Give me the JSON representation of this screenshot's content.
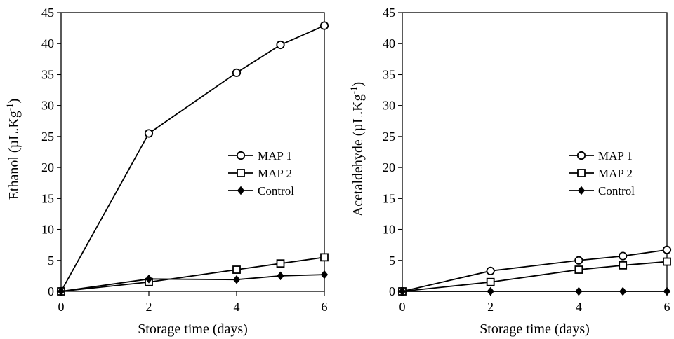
{
  "chart_data": [
    {
      "type": "line",
      "xlabel": "Storage time (days)",
      "ylabel": {
        "main": "Ethanol (µL.Kg",
        "sup": "-1",
        "tail": ")"
      },
      "xlim": [
        0,
        6
      ],
      "ylim": [
        0,
        45
      ],
      "xticks": [
        0,
        2,
        4,
        6
      ],
      "yticks": [
        0,
        5,
        10,
        15,
        20,
        25,
        30,
        35,
        40,
        45
      ],
      "grid": false,
      "legend_position": "right-middle",
      "series": [
        {
          "name": "MAP 1",
          "marker": "circle",
          "x": [
            0,
            2,
            4,
            5,
            6
          ],
          "y": [
            0,
            25.5,
            35.3,
            39.8,
            42.9
          ]
        },
        {
          "name": "MAP 2",
          "marker": "square",
          "x": [
            0,
            2,
            4,
            5,
            6
          ],
          "y": [
            0,
            1.5,
            3.5,
            4.5,
            5.5
          ]
        },
        {
          "name": "Control",
          "marker": "diamond",
          "x": [
            0,
            2,
            4,
            5,
            6
          ],
          "y": [
            0,
            2.0,
            1.9,
            2.5,
            2.7
          ]
        }
      ]
    },
    {
      "type": "line",
      "xlabel": "Storage time (days)",
      "ylabel": {
        "main": "Acetaldehyde (µL.Kg",
        "sup": "-1",
        "tail": ")"
      },
      "xlim": [
        0,
        6
      ],
      "ylim": [
        0,
        45
      ],
      "xticks": [
        0,
        2,
        4,
        6
      ],
      "yticks": [
        0,
        5,
        10,
        15,
        20,
        25,
        30,
        35,
        40,
        45
      ],
      "grid": false,
      "legend_position": "right-middle",
      "series": [
        {
          "name": "MAP 1",
          "marker": "circle",
          "x": [
            0,
            2,
            4,
            5,
            6
          ],
          "y": [
            0,
            3.3,
            5.0,
            5.7,
            6.7
          ]
        },
        {
          "name": "MAP 2",
          "marker": "square",
          "x": [
            0,
            2,
            4,
            5,
            6
          ],
          "y": [
            0,
            1.5,
            3.5,
            4.2,
            4.8
          ]
        },
        {
          "name": "Control",
          "marker": "diamond",
          "x": [
            0,
            2,
            4,
            5,
            6
          ],
          "y": [
            0,
            0,
            0,
            0,
            0
          ]
        }
      ]
    }
  ]
}
